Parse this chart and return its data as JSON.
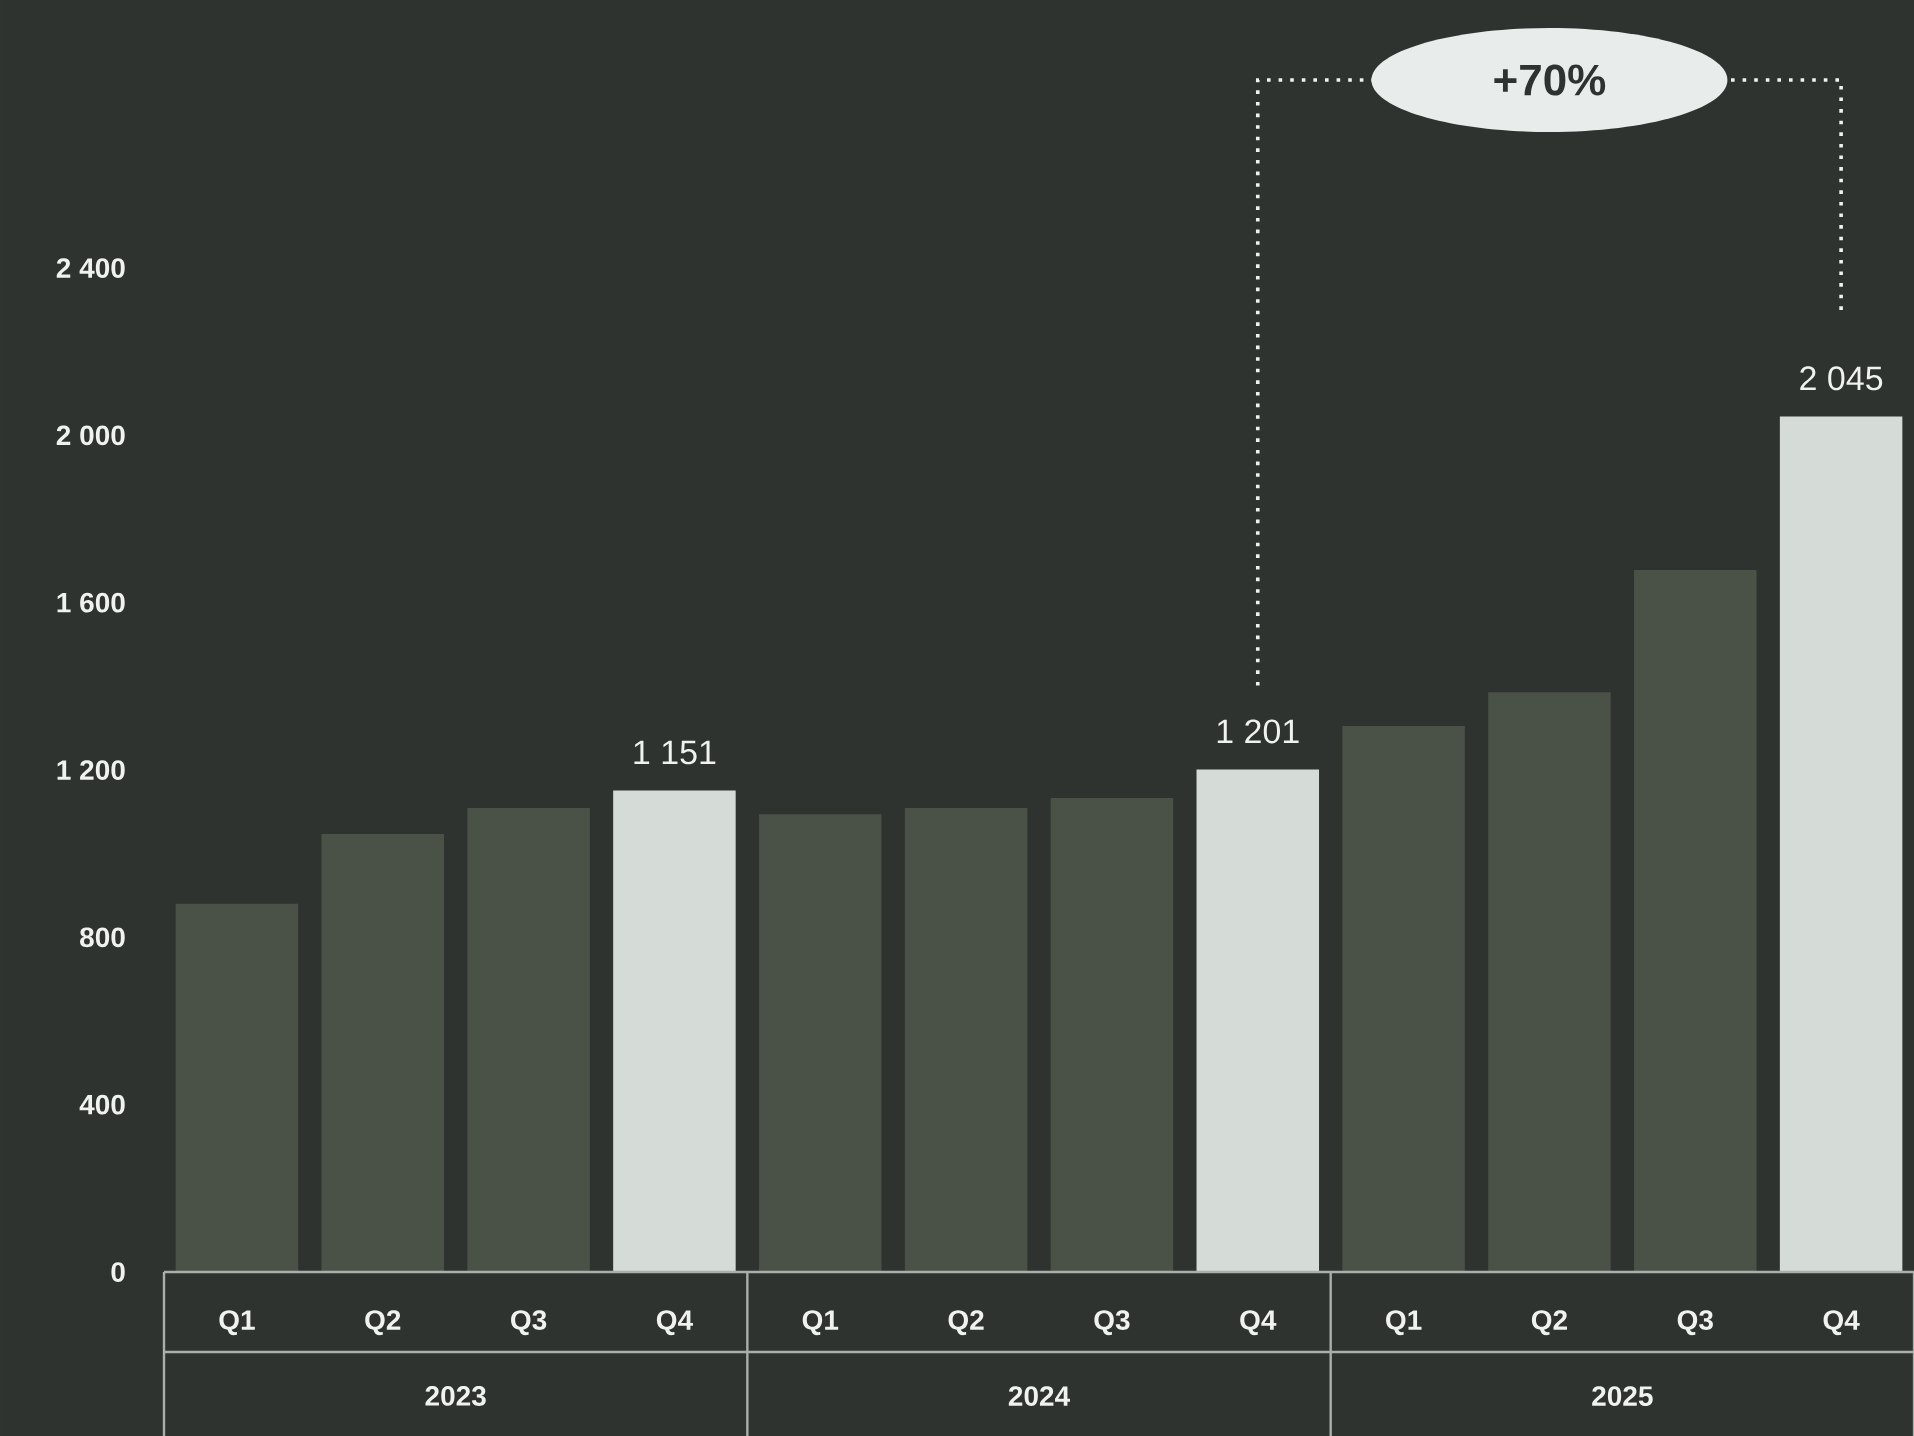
{
  "chart_data": {
    "type": "bar",
    "categories": [
      "Q1",
      "Q2",
      "Q3",
      "Q4",
      "Q1",
      "Q2",
      "Q3",
      "Q4",
      "Q1",
      "Q2",
      "Q3",
      "Q4"
    ],
    "values": [
      880,
      1047,
      1109,
      1151,
      1094,
      1109,
      1133,
      1201,
      1305,
      1386,
      1678,
      2045
    ],
    "colors": [
      "#4a5248",
      "#4a5248",
      "#4a5248",
      "#d5dcd8",
      "#4a5248",
      "#4a5248",
      "#4a5248",
      "#d5dcd8",
      "#4a5248",
      "#4a5248",
      "#4a5248",
      "#d5dcd8"
    ],
    "value_labels": [
      null,
      null,
      null,
      "1 151",
      null,
      null,
      null,
      "1 201",
      null,
      null,
      null,
      "2 045"
    ],
    "ylim": [
      0,
      2400
    ],
    "yticks": [
      0,
      {
        "value": 400,
        "label": "400"
      },
      {
        "value": 800,
        "label": "800"
      },
      {
        "value": 1200,
        "label": "1 200"
      },
      {
        "value": 1600,
        "label": "1 600"
      },
      {
        "value": 2000,
        "label": "2 000"
      },
      {
        "value": 2400,
        "label": "2 400"
      }
    ],
    "annotations": [
      "2023",
      "2024",
      "2025",
      "+70%"
    ]
  }
}
